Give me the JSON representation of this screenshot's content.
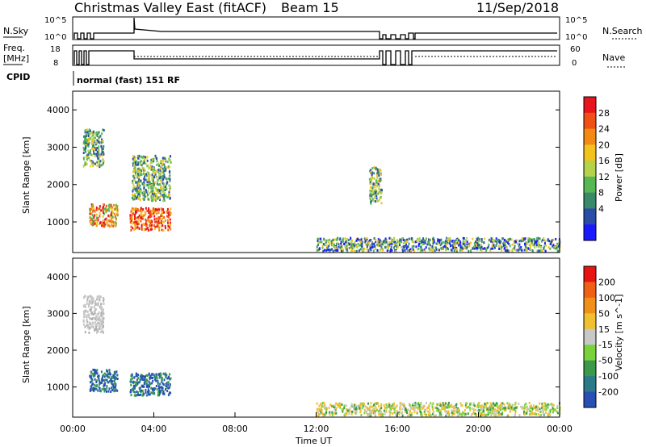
{
  "header": {
    "station_title": "Christmas Valley East (fitACF)",
    "beam_label": "Beam 15",
    "date_label": "11/Sep/2018"
  },
  "top_panels": {
    "nsky_label": "N.Sky",
    "nsky_ticks": [
      "10^5",
      "10^0"
    ],
    "nsearch_label": "N.Search",
    "nsearch_ticks": [
      "10^5",
      "10^0"
    ],
    "freq_label_line1": "Freq.",
    "freq_label_line2": "[MHz]",
    "freq_ticks": [
      "18",
      "8"
    ],
    "nave_label": "Nave",
    "nave_ticks": [
      "60",
      "0"
    ],
    "cpid_label": "CPID",
    "cpid_text": "normal (fast) 151 RF"
  },
  "chart_data": [
    {
      "type": "heatmap",
      "panel": "power",
      "ylabel": "Slant Range [km]",
      "y_ticks": [
        "4000",
        "3000",
        "2000",
        "1000"
      ],
      "ylim": [
        180,
        4500
      ],
      "xlim": [
        0,
        24
      ],
      "colorbar_label": "Power [dB]",
      "colorbar_ticks": [
        "28",
        "24",
        "20",
        "16",
        "12",
        "8",
        "4"
      ],
      "colorbar_colors": [
        "#1a1aff",
        "#2a4ea8",
        "#3a8a6a",
        "#55b855",
        "#b4d24a",
        "#f2c31e",
        "#f28a14",
        "#f05014",
        "#e8141e"
      ],
      "regions": [
        {
          "x": [
            0.5,
            1.5
          ],
          "y": [
            2500,
            3500
          ],
          "level": "mixed"
        },
        {
          "x": [
            0.8,
            2.2
          ],
          "y": [
            900,
            1500
          ],
          "level": "orange-red"
        },
        {
          "x": [
            2.8,
            4.8
          ],
          "y": [
            800,
            1400
          ],
          "level": "red"
        },
        {
          "x": [
            2.9,
            4.8
          ],
          "y": [
            1600,
            2800
          ],
          "level": "mixed"
        },
        {
          "x": [
            12.0,
            24.0
          ],
          "y": [
            200,
            600
          ],
          "level": "low"
        },
        {
          "x": [
            14.6,
            15.2
          ],
          "y": [
            1500,
            2500
          ],
          "level": "mixed"
        }
      ]
    },
    {
      "type": "heatmap",
      "panel": "velocity",
      "ylabel": "Slant Range [km]",
      "y_ticks": [
        "4000",
        "3000",
        "2000",
        "1000"
      ],
      "ylim": [
        180,
        4500
      ],
      "xlim": [
        0,
        24
      ],
      "colorbar_label": "Velocity [m s^-1]",
      "colorbar_ticks": [
        "200",
        "100",
        "50",
        "15",
        "-15",
        "-50",
        "-100",
        "-200"
      ],
      "colorbar_colors": [
        "#2850b4",
        "#2a7a8a",
        "#3a9a4a",
        "#7ad23a",
        "#c8c8c8",
        "#f0c030",
        "#f09018",
        "#f06014",
        "#e81414"
      ],
      "regions": [
        {
          "x": [
            0.5,
            1.5
          ],
          "y": [
            2500,
            3500
          ],
          "level": "gray"
        },
        {
          "x": [
            0.8,
            2.2
          ],
          "y": [
            900,
            1500
          ],
          "level": "blue"
        },
        {
          "x": [
            2.8,
            4.8
          ],
          "y": [
            800,
            1400
          ],
          "level": "blue"
        },
        {
          "x": [
            12.0,
            24.0
          ],
          "y": [
            200,
            600
          ],
          "level": "orange-green"
        }
      ]
    }
  ],
  "x_axis": {
    "ticks": [
      "00:00",
      "04:00",
      "08:00",
      "12:00",
      "16:00",
      "20:00",
      "00:00"
    ],
    "label": "Time UT"
  }
}
